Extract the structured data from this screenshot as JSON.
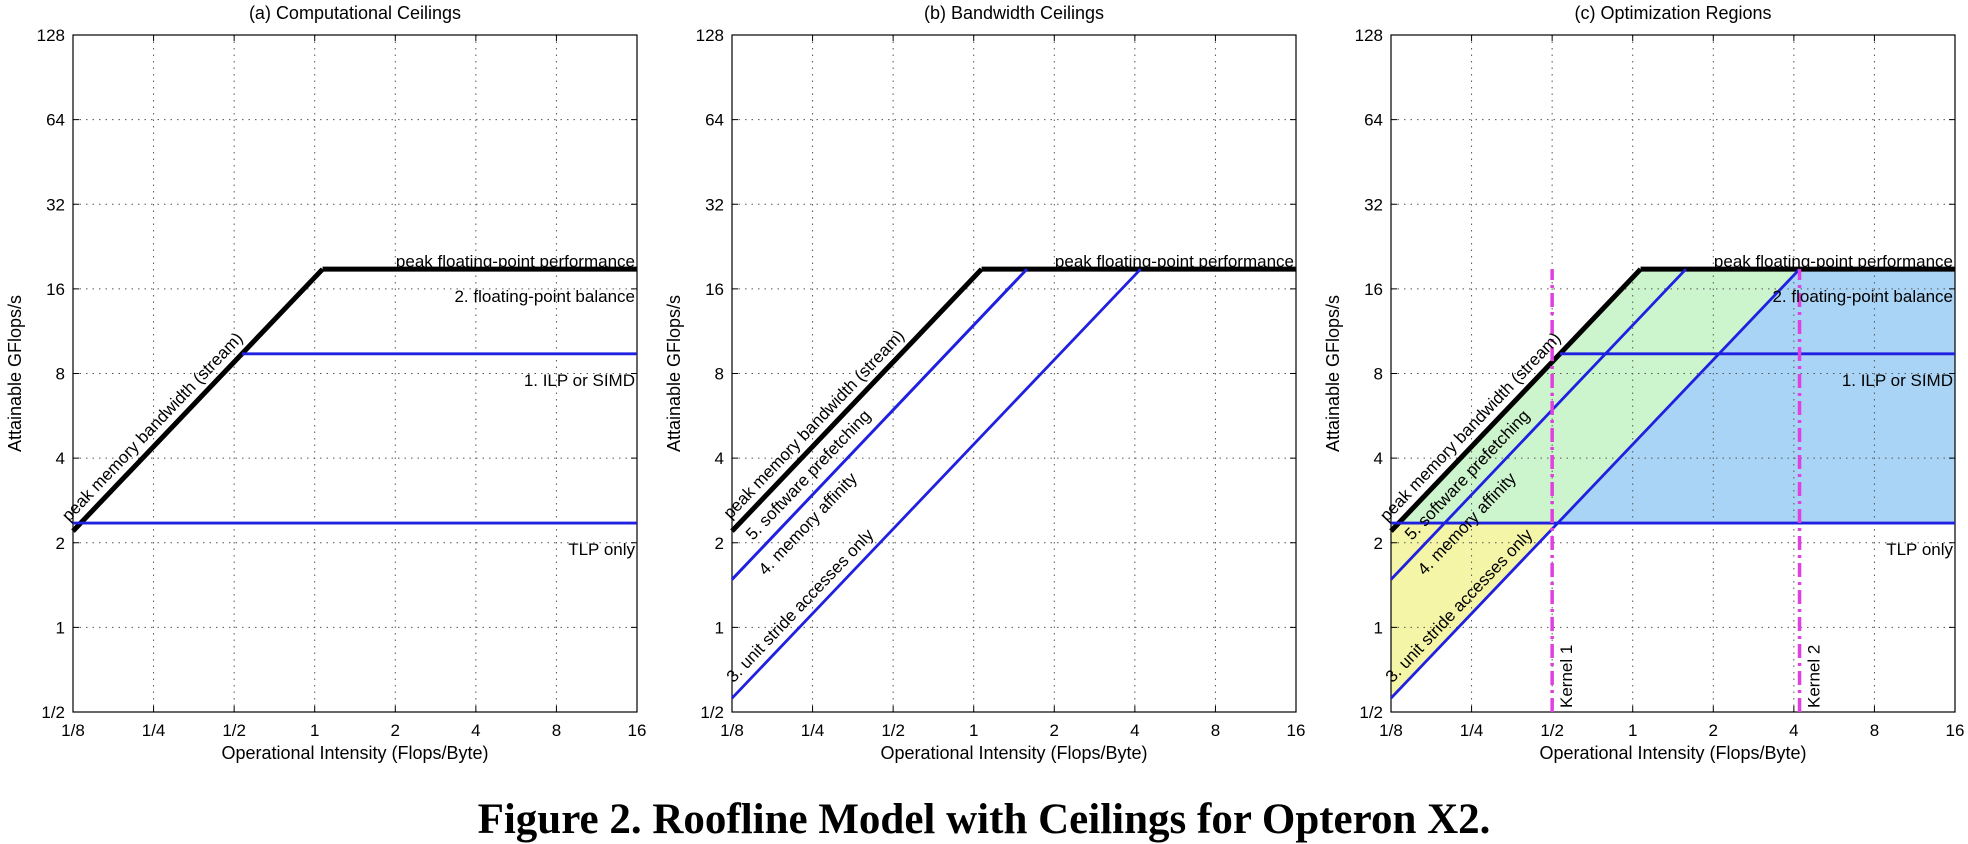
{
  "caption": "Figure 2. Roofline Model with Ceilings for Opteron X2.",
  "chart_data": [
    {
      "type": "line",
      "title": "(a) Computational Ceilings",
      "xlabel": "Operational Intensity (Flops/Byte)",
      "ylabel": "Attainable GFlops/s",
      "xscale": "log2",
      "yscale": "log2",
      "xlim": [
        0.125,
        16
      ],
      "ylim": [
        0.5,
        128
      ],
      "xticks": [
        0.125,
        0.25,
        0.5,
        1,
        2,
        4,
        8,
        16
      ],
      "xtick_labels": [
        "1/8",
        "1/4",
        "1/2",
        "1",
        "2",
        "4",
        "8",
        "16"
      ],
      "yticks": [
        0.5,
        1,
        2,
        4,
        8,
        16,
        32,
        64,
        128
      ],
      "ytick_labels": [
        "1/2",
        "1",
        "2",
        "4",
        "8",
        "16",
        "32",
        "64",
        "128"
      ],
      "grid": true,
      "series": [
        {
          "name": "peak memory bandwidth (stream)",
          "color": "#000000",
          "x": [
            0.125,
            1.07
          ],
          "y": [
            2.2,
            18.8
          ]
        },
        {
          "name": "peak floating-point performance",
          "color": "#000000",
          "x": [
            1.07,
            16
          ],
          "y": [
            18.8,
            18.8
          ]
        },
        {
          "name": "1. ILP or SIMD",
          "color": "#2020e0",
          "x": [
            0.535,
            16
          ],
          "y": [
            9.4,
            9.4
          ]
        },
        {
          "name": "TLP only",
          "color": "#2020e0",
          "x": [
            0.125,
            16
          ],
          "y": [
            2.35,
            2.35
          ]
        }
      ],
      "annotations": [
        "peak floating-point performance",
        "2. floating-point balance",
        "1. ILP or SIMD",
        "TLP only",
        "peak memory bandwidth (stream)"
      ]
    },
    {
      "type": "line",
      "title": "(b) Bandwidth Ceilings",
      "xlabel": "Operational Intensity (Flops/Byte)",
      "ylabel": "Attainable GFlops/s",
      "xscale": "log2",
      "yscale": "log2",
      "xlim": [
        0.125,
        16
      ],
      "ylim": [
        0.5,
        128
      ],
      "xticks": [
        0.125,
        0.25,
        0.5,
        1,
        2,
        4,
        8,
        16
      ],
      "xtick_labels": [
        "1/8",
        "1/4",
        "1/2",
        "1",
        "2",
        "4",
        "8",
        "16"
      ],
      "yticks": [
        0.5,
        1,
        2,
        4,
        8,
        16,
        32,
        64,
        128
      ],
      "ytick_labels": [
        "1/2",
        "1",
        "2",
        "4",
        "8",
        "16",
        "32",
        "64",
        "128"
      ],
      "grid": true,
      "series": [
        {
          "name": "peak memory bandwidth (stream)",
          "color": "#000000",
          "x": [
            0.125,
            1.07
          ],
          "y": [
            2.2,
            18.8
          ]
        },
        {
          "name": "peak floating-point performance",
          "color": "#000000",
          "x": [
            1.07,
            16
          ],
          "y": [
            18.8,
            18.8
          ]
        },
        {
          "name": "5. software prefetching",
          "color": "#2020e0",
          "x": [
            0.125,
            1.58
          ],
          "y": [
            1.48,
            18.8
          ]
        },
        {
          "name": "4. memory affinity",
          "color": "#2020e0",
          "x": [
            0.125,
            1.58
          ],
          "y": [
            1.48,
            18.8
          ]
        },
        {
          "name": "3. unit stride accesses only",
          "color": "#2020e0",
          "x": [
            0.125,
            4.2
          ],
          "y": [
            0.56,
            18.8
          ]
        }
      ],
      "annotations": [
        "peak floating-point performance",
        "peak memory bandwidth (stream)",
        "5. software prefetching",
        "4. memory affinity",
        "3. unit stride accesses only"
      ]
    },
    {
      "type": "line",
      "title": "(c) Optimization Regions",
      "xlabel": "Operational Intensity (Flops/Byte)",
      "ylabel": "Attainable GFlops/s",
      "xscale": "log2",
      "yscale": "log2",
      "xlim": [
        0.125,
        16
      ],
      "ylim": [
        0.5,
        128
      ],
      "xticks": [
        0.125,
        0.25,
        0.5,
        1,
        2,
        4,
        8,
        16
      ],
      "xtick_labels": [
        "1/8",
        "1/4",
        "1/2",
        "1",
        "2",
        "4",
        "8",
        "16"
      ],
      "yticks": [
        0.5,
        1,
        2,
        4,
        8,
        16,
        32,
        64,
        128
      ],
      "ytick_labels": [
        "1/2",
        "1",
        "2",
        "4",
        "8",
        "16",
        "32",
        "64",
        "128"
      ],
      "grid": true,
      "region_colors": {
        "yellow": "#f5f5a8",
        "green": "#cdf5cd",
        "blue": "#a9d4f5"
      },
      "series": [
        {
          "name": "peak memory bandwidth (stream)",
          "color": "#000000",
          "x": [
            0.125,
            1.07
          ],
          "y": [
            2.2,
            18.8
          ]
        },
        {
          "name": "peak floating-point performance",
          "color": "#000000",
          "x": [
            1.07,
            16
          ],
          "y": [
            18.8,
            18.8
          ]
        },
        {
          "name": "5. software prefetching",
          "color": "#2020e0",
          "x": [
            0.125,
            1.58
          ],
          "y": [
            1.48,
            18.8
          ]
        },
        {
          "name": "3. unit stride accesses only",
          "color": "#2020e0",
          "x": [
            0.125,
            4.2
          ],
          "y": [
            0.56,
            18.8
          ]
        },
        {
          "name": "1. ILP or SIMD",
          "color": "#2020e0",
          "x": [
            0.535,
            16
          ],
          "y": [
            9.4,
            9.4
          ]
        },
        {
          "name": "TLP only",
          "color": "#2020e0",
          "x": [
            0.125,
            16
          ],
          "y": [
            2.35,
            2.35
          ]
        },
        {
          "name": "Kernel 1",
          "color": "#e040e0",
          "x": [
            0.5,
            0.5
          ],
          "y": [
            0.5,
            18.8
          ]
        },
        {
          "name": "Kernel 2",
          "color": "#e040e0",
          "x": [
            4.2,
            4.2
          ],
          "y": [
            0.5,
            18.8
          ]
        }
      ],
      "annotations": [
        "peak floating-point performance",
        "2. floating-point balance",
        "1. ILP or SIMD",
        "TLP only",
        "peak memory bandwidth (stream)",
        "5. software prefetching",
        "4. memory affinity",
        "3. unit stride accesses only",
        "Kernel 1",
        "Kernel 2"
      ]
    }
  ]
}
